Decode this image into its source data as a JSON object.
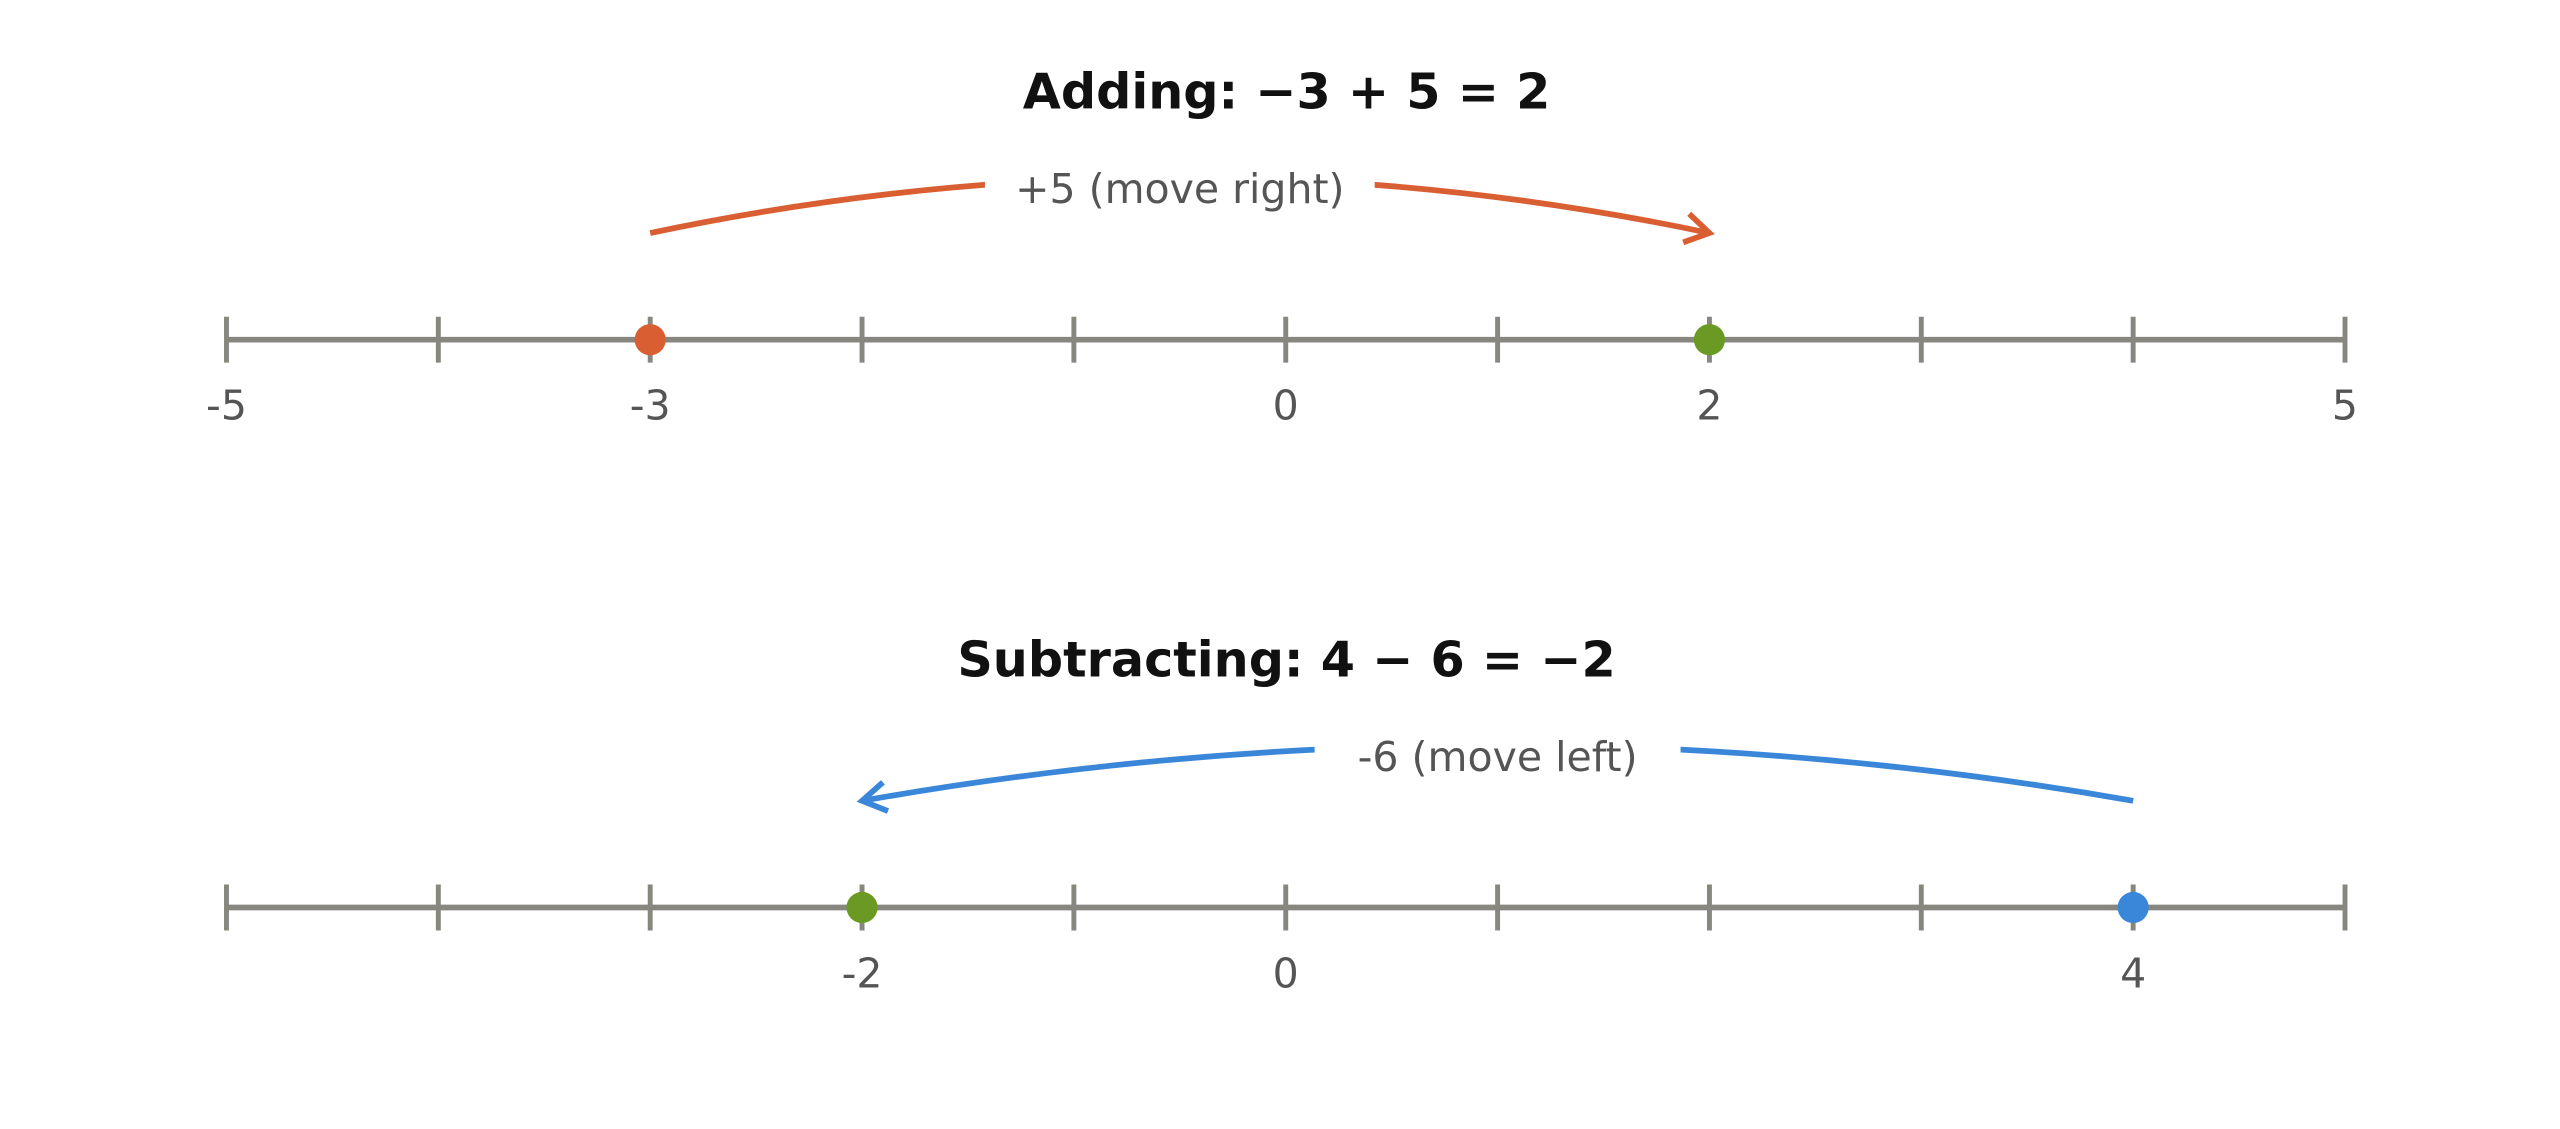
{
  "diagrams": [
    {
      "title": "Adding: −3 + 5 = 2",
      "arrow_label": "+5 (move right)",
      "arrow_color": "#d95f33",
      "xlim": [
        -5,
        5
      ],
      "xticks": [
        -5,
        -4,
        -3,
        -2,
        -1,
        0,
        1,
        2,
        3,
        4,
        5
      ],
      "tick_labels": [
        -5,
        -3,
        0,
        2,
        5
      ],
      "start": {
        "value": -3,
        "color": "#d95f33"
      },
      "end": {
        "value": 2,
        "color": "#6a9a23"
      }
    },
    {
      "title": "Subtracting: 4 − 6 = −2",
      "arrow_label": "-6 (move left)",
      "arrow_color": "#3a87d9",
      "xlim": [
        -5,
        5
      ],
      "xticks": [
        -5,
        -4,
        -3,
        -2,
        -1,
        0,
        1,
        2,
        3,
        4,
        5
      ],
      "tick_labels": [
        -2,
        0,
        4
      ],
      "start": {
        "value": 4,
        "color": "#3a87d9"
      },
      "end": {
        "value": -2,
        "color": "#6a9a23"
      }
    }
  ]
}
